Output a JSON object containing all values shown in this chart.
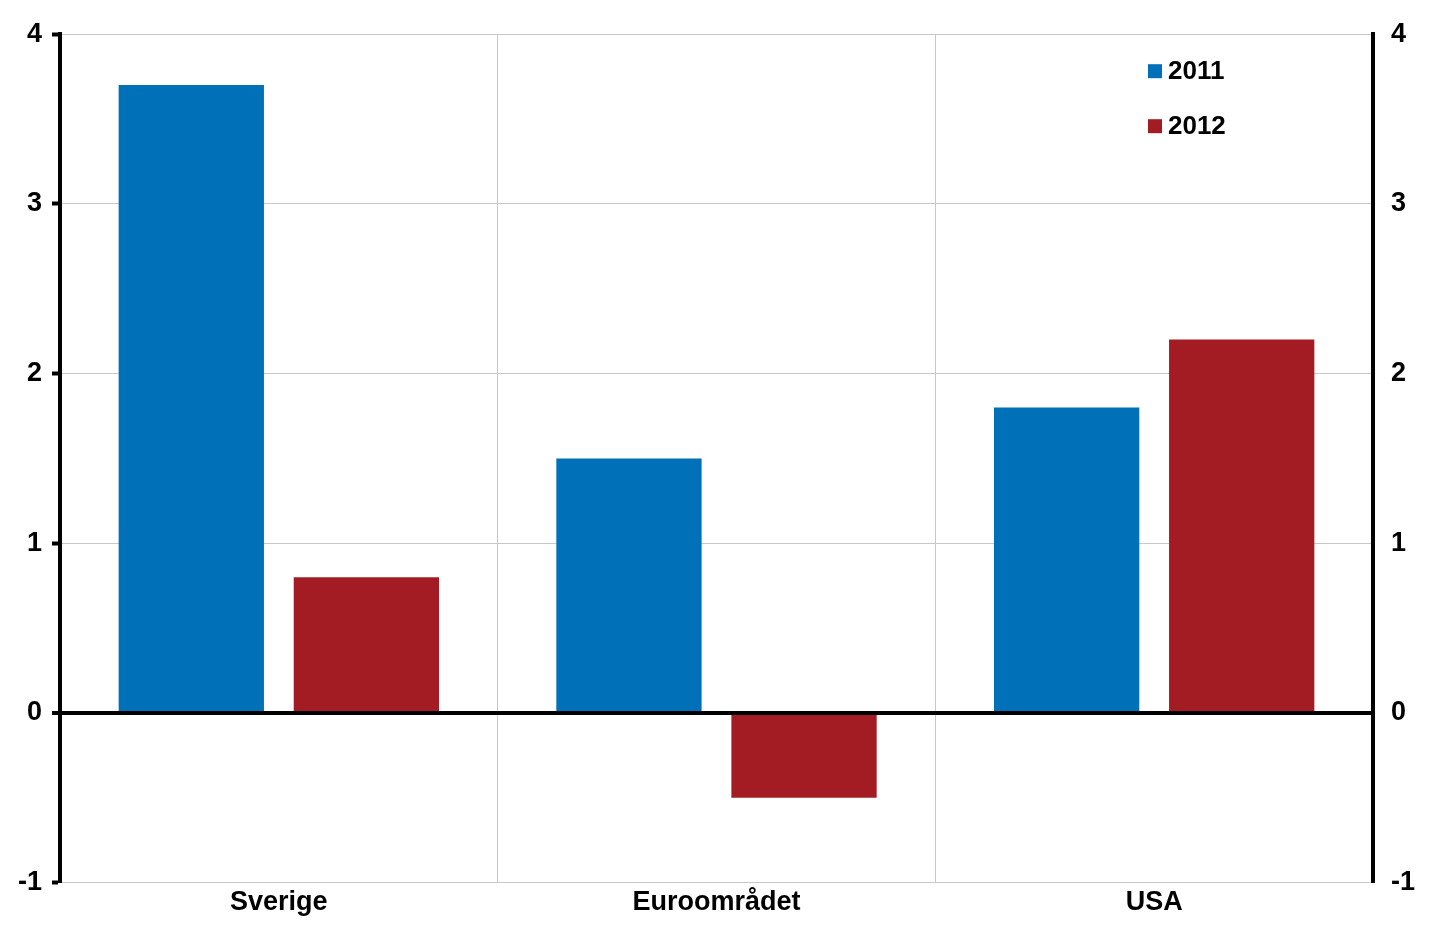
{
  "chart_data": {
    "type": "bar",
    "categories": [
      "Sverige",
      "Euroområdet",
      "USA"
    ],
    "series": [
      {
        "name": "2011",
        "color": "#0070b8",
        "values": [
          3.7,
          1.5,
          1.8
        ]
      },
      {
        "name": "2012",
        "color": "#a31c23",
        "values": [
          0.8,
          -0.5,
          2.2
        ]
      }
    ],
    "ylim": [
      -1,
      4
    ],
    "yticks": [
      -1,
      0,
      1,
      2,
      3,
      4
    ],
    "y2lim": [
      -1,
      4
    ],
    "y2ticks": [
      -1,
      0,
      1,
      2,
      3,
      4
    ],
    "grid": true,
    "legend": "top right"
  }
}
